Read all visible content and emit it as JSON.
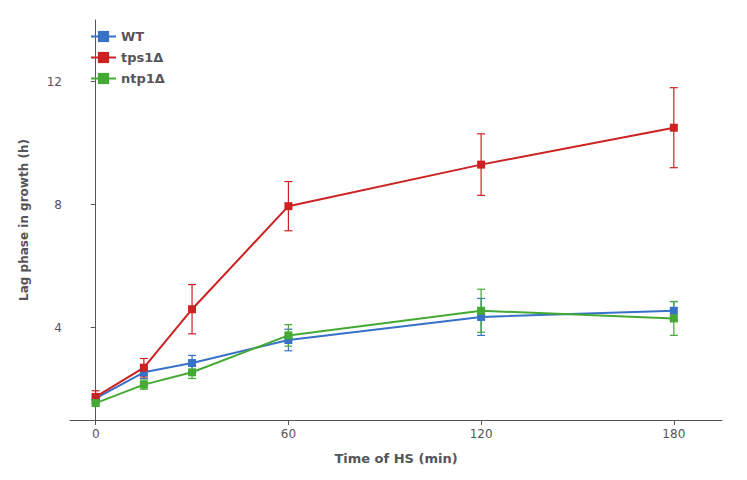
{
  "chart_data": {
    "type": "line",
    "xlabel": "Time of HS (min)",
    "ylabel": "Lag phase in growth (h)",
    "x": [
      0,
      15,
      30,
      60,
      120,
      180
    ],
    "series": [
      {
        "name": "WT",
        "color": "#3771c8",
        "marker": "square",
        "values": [
          1.7,
          2.55,
          2.85,
          3.6,
          4.35,
          4.55
        ],
        "err": [
          0.15,
          0.2,
          0.25,
          0.35,
          0.6,
          0.3
        ]
      },
      {
        "name": "tps1Δ",
        "color": "#cc2222",
        "marker": "square",
        "values": [
          1.75,
          2.7,
          4.6,
          7.95,
          9.3,
          10.5
        ],
        "err": [
          0.2,
          0.3,
          0.8,
          0.8,
          1.0,
          1.3
        ]
      },
      {
        "name": "ntp1Δ",
        "color": "#44aa33",
        "marker": "square",
        "values": [
          1.55,
          2.15,
          2.55,
          3.75,
          4.55,
          4.3
        ],
        "err": [
          0.1,
          0.15,
          0.2,
          0.35,
          0.7,
          0.55
        ]
      }
    ],
    "xlim": [
      -8,
      195
    ],
    "ylim": [
      1.0,
      14.0
    ],
    "xticks": [
      0,
      60,
      120,
      180
    ],
    "yticks": [
      4,
      8,
      12
    ],
    "grid": false,
    "legend": "upper left"
  }
}
